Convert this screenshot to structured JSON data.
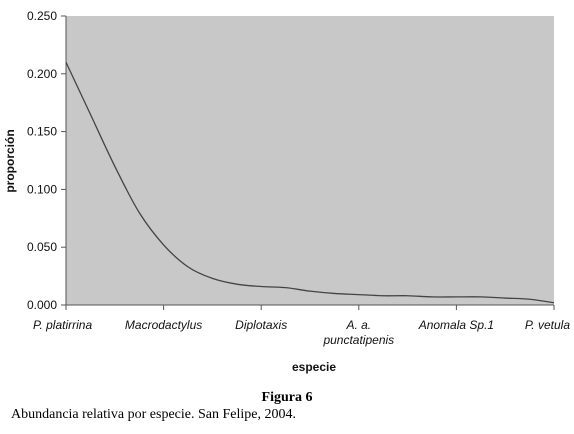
{
  "chart_data": {
    "type": "line",
    "categories": [
      "P. platirrina",
      "Macrodactylus",
      "Diplotaxis",
      "A. a. punctatipenis",
      "Anomala Sp.1",
      "P. vetula"
    ],
    "category_lines": [
      [
        "P. platirrina"
      ],
      [
        "Macrodactylus"
      ],
      [
        "Diplotaxis"
      ],
      [
        "A. a.",
        "punctatipenis"
      ],
      [
        "Anomala Sp.1"
      ],
      [
        "P. vetula"
      ]
    ],
    "x": [
      0,
      0.25,
      0.5,
      0.75,
      1.0,
      1.25,
      1.5,
      1.75,
      2.0,
      2.25,
      2.5,
      2.75,
      3.0,
      3.25,
      3.5,
      3.75,
      4.0,
      4.25,
      4.5,
      4.75,
      5.0
    ],
    "series": [
      {
        "values": [
          0.21,
          0.165,
          0.12,
          0.08,
          0.052,
          0.033,
          0.023,
          0.018,
          0.016,
          0.015,
          0.012,
          0.01,
          0.009,
          0.008,
          0.008,
          0.007,
          0.007,
          0.007,
          0.006,
          0.005,
          0.002
        ]
      }
    ],
    "xlabel": "especie",
    "ylabel": "proporción",
    "ylim": [
      0,
      0.25
    ],
    "yticks": [
      "0.000",
      "0.050",
      "0.100",
      "0.150",
      "0.200",
      "0.250"
    ],
    "ytick_values": [
      0,
      0.05,
      0.1,
      0.15,
      0.2,
      0.25
    ],
    "grid": false,
    "legend": "none",
    "colors": {
      "plot_bg": "#c8c8c8",
      "line": "#444444",
      "axis": "#555555"
    }
  },
  "caption": {
    "figure_label": "Figura 6",
    "text": "Abundancia relativa por especie. San Felipe, 2004."
  }
}
